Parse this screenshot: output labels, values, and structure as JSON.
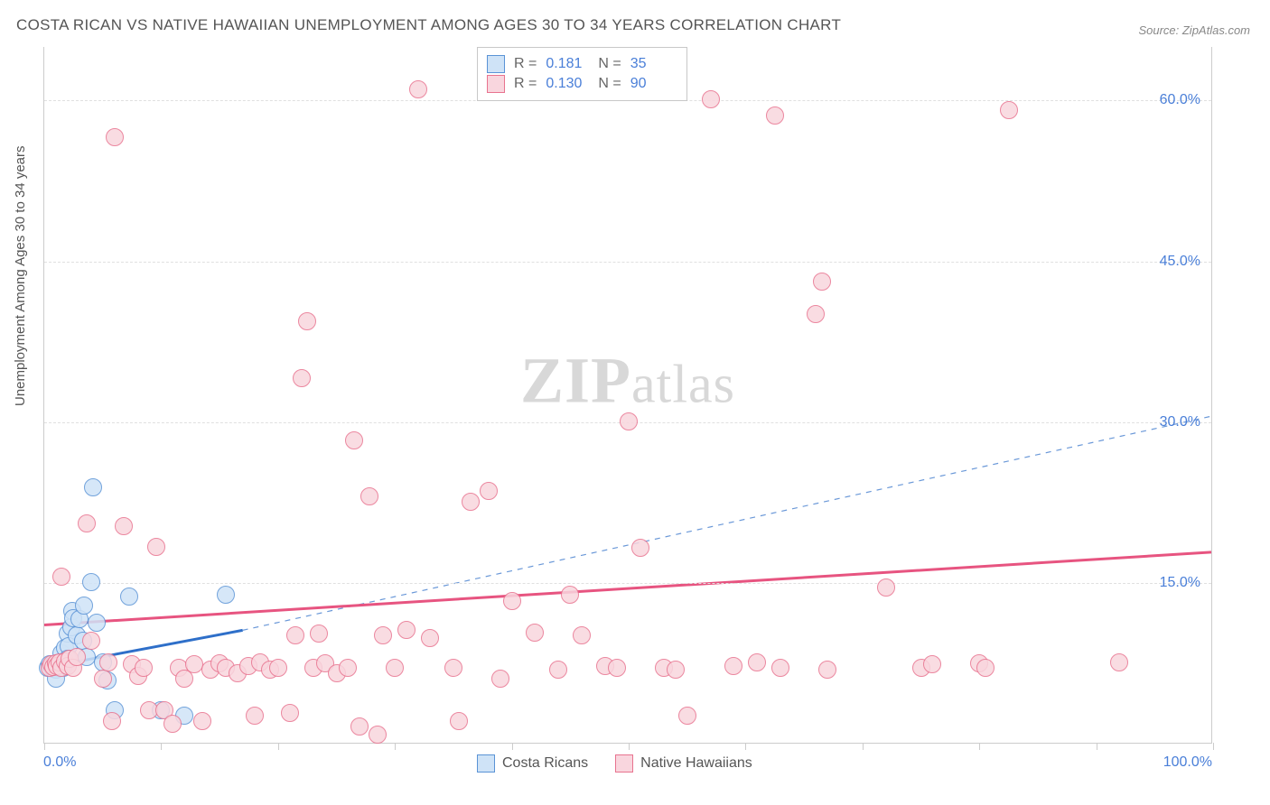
{
  "title": "COSTA RICAN VS NATIVE HAWAIIAN UNEMPLOYMENT AMONG AGES 30 TO 34 YEARS CORRELATION CHART",
  "source": "Source: ZipAtlas.com",
  "ylabel": "Unemployment Among Ages 30 to 34 years",
  "watermark_bold": "ZIP",
  "watermark_rest": "atlas",
  "chart": {
    "type": "scatter",
    "xlim": [
      0,
      100
    ],
    "ylim": [
      0,
      65
    ],
    "y_ticks": [
      15,
      30,
      45,
      60
    ],
    "y_tick_labels": [
      "15.0%",
      "30.0%",
      "45.0%",
      "60.0%"
    ],
    "x_ticks": [
      0,
      10,
      20,
      30,
      40,
      50,
      60,
      70,
      80,
      90,
      100
    ],
    "x_min_label": "0.0%",
    "x_max_label": "100.0%",
    "background_color": "#ffffff",
    "grid_color": "#e0e0e0",
    "axis_color": "#cccccc",
    "tick_label_color": "#4a7fd8",
    "point_radius": 10,
    "series": [
      {
        "key": "costa_ricans",
        "label": "Costa Ricans",
        "fill": "#cfe3f7",
        "stroke": "#5a93d6",
        "trend_color": "#2e6fc9",
        "trend_dash": null,
        "trend_width": 3,
        "trend": {
          "x1": 0,
          "y1": 7.0,
          "x2": 17,
          "y2": 10.5
        },
        "ext_trend": {
          "x1": 17,
          "y1": 10.5,
          "x2": 100,
          "y2": 30.5,
          "dash": "6,6",
          "width": 1.2,
          "color": "#6a98d8"
        },
        "R": "0.181",
        "N": "35",
        "points": [
          [
            0.3,
            7.0
          ],
          [
            0.5,
            7.3
          ],
          [
            0.6,
            7.2
          ],
          [
            0.7,
            7.1
          ],
          [
            0.8,
            6.9
          ],
          [
            1.0,
            6.8
          ],
          [
            1.1,
            7.2
          ],
          [
            1.2,
            7.5
          ],
          [
            1.3,
            7.0
          ],
          [
            1.4,
            7.4
          ],
          [
            1.5,
            8.3
          ],
          [
            1.6,
            7.0
          ],
          [
            1.8,
            8.8
          ],
          [
            2.0,
            10.2
          ],
          [
            2.1,
            9.0
          ],
          [
            2.3,
            10.8
          ],
          [
            2.4,
            12.3
          ],
          [
            2.5,
            11.6
          ],
          [
            2.8,
            10.0
          ],
          [
            3.0,
            11.5
          ],
          [
            3.3,
            9.5
          ],
          [
            3.4,
            12.8
          ],
          [
            3.6,
            8.0
          ],
          [
            4.0,
            15.0
          ],
          [
            4.2,
            23.8
          ],
          [
            4.5,
            11.2
          ],
          [
            5.0,
            7.5
          ],
          [
            5.4,
            5.8
          ],
          [
            6.0,
            3.0
          ],
          [
            7.3,
            13.6
          ],
          [
            10.0,
            3.0
          ],
          [
            12.0,
            2.5
          ],
          [
            15.5,
            13.8
          ],
          [
            1.0,
            6.0
          ],
          [
            2.0,
            7.8
          ]
        ]
      },
      {
        "key": "native_hawaiians",
        "label": "Native Hawaiians",
        "fill": "#f9d6de",
        "stroke": "#e8738f",
        "trend_color": "#e75480",
        "trend_dash": null,
        "trend_width": 3,
        "trend": {
          "x1": 0,
          "y1": 11.0,
          "x2": 100,
          "y2": 17.8
        },
        "R": "0.130",
        "N": "90",
        "points": [
          [
            0.5,
            7.0
          ],
          [
            0.6,
            7.3
          ],
          [
            0.8,
            7.1
          ],
          [
            1.0,
            7.4
          ],
          [
            1.1,
            7.2
          ],
          [
            1.3,
            7.5
          ],
          [
            1.5,
            7.0
          ],
          [
            1.8,
            7.6
          ],
          [
            2.0,
            7.2
          ],
          [
            2.2,
            7.8
          ],
          [
            2.5,
            7.0
          ],
          [
            2.8,
            8.0
          ],
          [
            1.5,
            15.5
          ],
          [
            3.6,
            20.5
          ],
          [
            4.0,
            9.5
          ],
          [
            5.0,
            6.0
          ],
          [
            5.5,
            7.5
          ],
          [
            5.8,
            2.0
          ],
          [
            6.0,
            56.5
          ],
          [
            6.8,
            20.2
          ],
          [
            7.5,
            7.3
          ],
          [
            8.0,
            6.2
          ],
          [
            8.5,
            7.0
          ],
          [
            9.0,
            3.0
          ],
          [
            9.6,
            18.3
          ],
          [
            10.3,
            3.0
          ],
          [
            11.0,
            1.8
          ],
          [
            11.5,
            7.0
          ],
          [
            12.0,
            6.0
          ],
          [
            12.8,
            7.3
          ],
          [
            13.5,
            2.0
          ],
          [
            14.2,
            6.8
          ],
          [
            15.0,
            7.4
          ],
          [
            15.5,
            7.0
          ],
          [
            16.5,
            6.5
          ],
          [
            17.5,
            7.2
          ],
          [
            18.0,
            2.5
          ],
          [
            18.5,
            7.5
          ],
          [
            19.3,
            6.8
          ],
          [
            20.0,
            7.0
          ],
          [
            21.0,
            2.8
          ],
          [
            21.5,
            10.0
          ],
          [
            22.0,
            34.0
          ],
          [
            22.5,
            39.3
          ],
          [
            23.0,
            7.0
          ],
          [
            23.5,
            10.2
          ],
          [
            24.0,
            7.4
          ],
          [
            25.0,
            6.5
          ],
          [
            26.0,
            7.0
          ],
          [
            26.5,
            28.2
          ],
          [
            27.0,
            1.5
          ],
          [
            27.8,
            23.0
          ],
          [
            28.5,
            0.8
          ],
          [
            29.0,
            10.0
          ],
          [
            30.0,
            7.0
          ],
          [
            31.0,
            10.5
          ],
          [
            32.0,
            61.0
          ],
          [
            33.0,
            9.8
          ],
          [
            35.0,
            7.0
          ],
          [
            35.5,
            2.0
          ],
          [
            36.5,
            22.5
          ],
          [
            38.0,
            23.5
          ],
          [
            39.0,
            6.0
          ],
          [
            40.0,
            13.2
          ],
          [
            42.0,
            10.3
          ],
          [
            44.0,
            6.8
          ],
          [
            45.0,
            13.8
          ],
          [
            46.0,
            10.0
          ],
          [
            48.0,
            7.2
          ],
          [
            49.0,
            7.0
          ],
          [
            50.0,
            30.0
          ],
          [
            51.0,
            18.2
          ],
          [
            53.0,
            7.0
          ],
          [
            54.0,
            6.8
          ],
          [
            55.0,
            2.5
          ],
          [
            57.0,
            60.0
          ],
          [
            59.0,
            7.2
          ],
          [
            61.0,
            7.5
          ],
          [
            62.5,
            58.5
          ],
          [
            63.0,
            7.0
          ],
          [
            66.0,
            40.0
          ],
          [
            66.5,
            43.0
          ],
          [
            67.0,
            6.8
          ],
          [
            72.0,
            14.5
          ],
          [
            75.0,
            7.0
          ],
          [
            76.0,
            7.3
          ],
          [
            80.0,
            7.4
          ],
          [
            80.5,
            7.0
          ],
          [
            82.5,
            59.0
          ],
          [
            92.0,
            7.5
          ]
        ]
      }
    ]
  },
  "legend_labels": {
    "R": "R  =",
    "N": "N  ="
  }
}
